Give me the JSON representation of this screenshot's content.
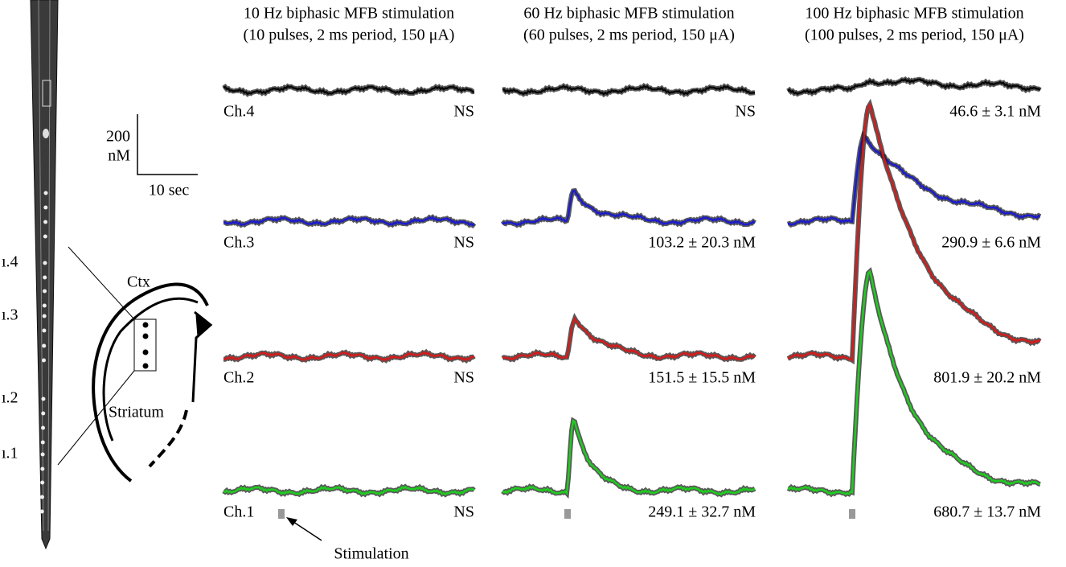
{
  "columns": [
    {
      "title": [
        "10 Hz biphasic MFB stimulation",
        "(10 pulses, 2 ms period, 150 μA)"
      ],
      "annotations": [
        "NS",
        "NS",
        "NS",
        "NS"
      ]
    },
    {
      "title": [
        "60 Hz biphasic MFB stimulation",
        "(60 pulses, 2 ms period, 150 μA)"
      ],
      "annotations": [
        "NS",
        "103.2 ± 20.3 nM",
        "151.5 ± 15.5 nM",
        "249.1 ± 32.7 nM"
      ]
    },
    {
      "title": [
        "100 Hz biphasic MFB stimulation",
        "(100 pulses, 2 ms period, 150 μA)"
      ],
      "annotations": [
        "46.6 ± 3.1 nM",
        "290.9 ± 6.6 nM",
        "801.9 ± 20.2 nM",
        "680.7 ± 13.7 nM"
      ]
    }
  ],
  "channels": [
    "Ch.4",
    "Ch.3",
    "Ch.2",
    "Ch.1"
  ],
  "scale_bar": {
    "y_value": "200",
    "y_unit": "nM",
    "x": "10 sec"
  },
  "stimulation": "Stimulation",
  "probe_labels": [
    "ı.4",
    "ı.3",
    "ı.2",
    "ı.1"
  ],
  "brain": {
    "cortex": "Ctx",
    "striatum": "Striatum"
  }
}
